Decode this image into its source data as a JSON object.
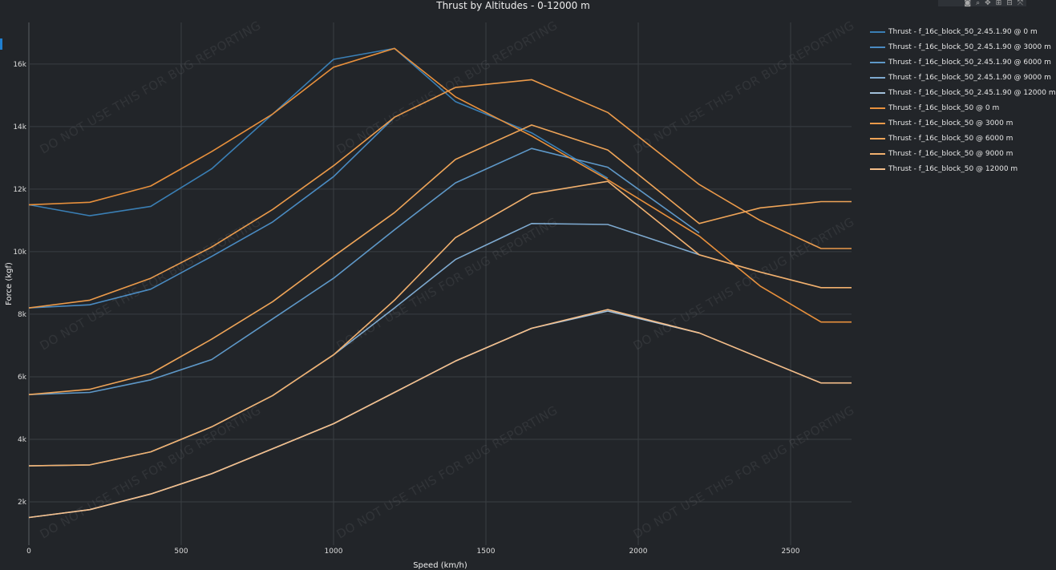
{
  "toolbar": {
    "icons": [
      "camera-icon",
      "zoom-icon",
      "pan-icon",
      "zoom-in-icon",
      "zoom-out-icon",
      "autoscale-icon",
      "reset-icon"
    ]
  },
  "watermark": "DO NOT USE THIS FOR BUG REPORTING",
  "chart_data": {
    "type": "line",
    "title": "Thrust by Altitudes - 0-12000 m",
    "xlabel": "Speed (km/h)",
    "ylabel": "Force (kgf)",
    "xlim": [
      0,
      2700
    ],
    "ylim": [
      615,
      17330
    ],
    "xticks": [
      0,
      500,
      1000,
      1500,
      2000,
      2500
    ],
    "xtick_labels": [
      "0",
      "500",
      "1000",
      "1500",
      "2000",
      "2500"
    ],
    "yticks": [
      2000,
      4000,
      6000,
      8000,
      10000,
      12000,
      14000,
      16000
    ],
    "ytick_labels": [
      "2k",
      "4k",
      "6k",
      "8k",
      "10k",
      "12k",
      "14k",
      "16k"
    ],
    "grid": true,
    "legend_position": "right",
    "series": [
      {
        "name": "Thrust - f_16c_block_50_2.45.1.90 @ 0 m",
        "color": "#3a7fb5",
        "x": [
          0,
          200,
          400,
          600,
          800,
          1000,
          1200,
          1400,
          1650,
          1900
        ],
        "y": [
          11500,
          11150,
          11450,
          12650,
          14400,
          16150,
          16500,
          14800,
          13800,
          12350
        ]
      },
      {
        "name": "Thrust - f_16c_block_50_2.45.1.90 @ 3000 m",
        "color": "#4a8bc2",
        "x": [
          0,
          200,
          400,
          600,
          800,
          1000,
          1200
        ],
        "y": [
          8200,
          8300,
          8800,
          9850,
          10950,
          12400,
          14300
        ]
      },
      {
        "name": "Thrust - f_16c_block_50_2.45.1.90 @ 6000 m",
        "color": "#5e98c8",
        "x": [
          0,
          200,
          400,
          600,
          800,
          1000,
          1200,
          1400,
          1650,
          1900,
          2200
        ],
        "y": [
          5430,
          5500,
          5900,
          6550,
          7850,
          9150,
          10700,
          12200,
          13300,
          12700,
          10600
        ]
      },
      {
        "name": "Thrust - f_16c_block_50_2.45.1.90 @ 9000 m",
        "color": "#7eaad0",
        "x": [
          0,
          200,
          400,
          600,
          800,
          1000,
          1200,
          1400,
          1650,
          1900,
          2200
        ],
        "y": [
          3150,
          3180,
          3600,
          4400,
          5400,
          6700,
          8200,
          9750,
          10900,
          10870,
          9900
        ]
      },
      {
        "name": "Thrust - f_16c_block_50_2.45.1.90 @ 12000 m",
        "color": "#a2c0da",
        "x": [
          0,
          200,
          400,
          600,
          800,
          1000,
          1200,
          1400,
          1650,
          1900,
          2200
        ],
        "y": [
          1500,
          1750,
          2250,
          2900,
          3700,
          4500,
          5500,
          6500,
          7550,
          8100,
          7400
        ]
      },
      {
        "name": "Thrust - f_16c_block_50 @ 0 m",
        "color": "#e8903c",
        "x": [
          0,
          200,
          400,
          600,
          800,
          1000,
          1200,
          1400,
          1650,
          1900,
          2200,
          2400,
          2600,
          2700
        ],
        "y": [
          11500,
          11580,
          12100,
          13200,
          14400,
          15900,
          16500,
          14950,
          13700,
          12300,
          10500,
          8900,
          7750,
          7750
        ]
      },
      {
        "name": "Thrust - f_16c_block_50 @ 3000 m",
        "color": "#eb9a4a",
        "x": [
          0,
          200,
          400,
          600,
          800,
          1000,
          1200,
          1400,
          1650,
          1900,
          2200,
          2400,
          2600,
          2700
        ],
        "y": [
          8200,
          8450,
          9150,
          10150,
          11350,
          12750,
          14300,
          15250,
          15500,
          14450,
          12150,
          11000,
          10100,
          10100
        ]
      },
      {
        "name": "Thrust - f_16c_block_50 @ 6000 m",
        "color": "#eea458",
        "x": [
          0,
          200,
          400,
          600,
          800,
          1000,
          1200,
          1400,
          1650,
          1900,
          2200,
          2400,
          2600,
          2700
        ],
        "y": [
          5430,
          5600,
          6100,
          7200,
          8400,
          9850,
          11250,
          12950,
          14050,
          13250,
          10900,
          11400,
          11600,
          11600
        ]
      },
      {
        "name": "Thrust - f_16c_block_50 @ 9000 m",
        "color": "#f1b06e",
        "x": [
          0,
          200,
          400,
          600,
          800,
          1000,
          1200,
          1400,
          1650,
          1900,
          2200,
          2400,
          2600,
          2700
        ],
        "y": [
          3150,
          3180,
          3600,
          4400,
          5400,
          6700,
          8450,
          10450,
          11850,
          12250,
          9900,
          9350,
          8850,
          8850
        ]
      },
      {
        "name": "Thrust - f_16c_block_50 @ 12000 m",
        "color": "#f4be8a",
        "x": [
          0,
          200,
          400,
          600,
          800,
          1000,
          1200,
          1400,
          1650,
          1900,
          2200,
          2400,
          2600,
          2700
        ],
        "y": [
          1500,
          1750,
          2250,
          2900,
          3700,
          4500,
          5500,
          6500,
          7550,
          8150,
          7400,
          6600,
          5800,
          5800
        ]
      }
    ]
  }
}
